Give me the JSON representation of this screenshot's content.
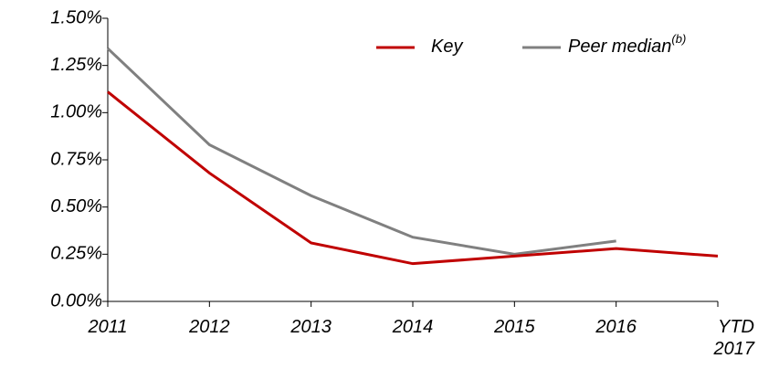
{
  "chart_data": {
    "type": "line",
    "categories": [
      "2011",
      "2012",
      "2013",
      "2014",
      "2015",
      "2016",
      "YTD 2017"
    ],
    "series": [
      {
        "name": "Key",
        "color": "#c00000",
        "values": [
          1.11,
          0.68,
          0.31,
          0.2,
          0.24,
          0.28,
          0.24
        ]
      },
      {
        "name": "Peer median",
        "footnote": "(b)",
        "color": "#808080",
        "values": [
          1.34,
          0.83,
          0.56,
          0.34,
          0.25,
          0.32,
          null
        ]
      }
    ],
    "ylim": [
      0,
      1.5
    ],
    "yticks": [
      {
        "value": 0,
        "label": "0.00%"
      },
      {
        "value": 0.25,
        "label": "0.25%"
      },
      {
        "value": 0.5,
        "label": "0.50%"
      },
      {
        "value": 0.75,
        "label": "0.75%"
      },
      {
        "value": 1.0,
        "label": "1.00%"
      },
      {
        "value": 1.25,
        "label": "1.25%"
      },
      {
        "value": 1.5,
        "label": "1.50%"
      }
    ],
    "grid": false
  }
}
